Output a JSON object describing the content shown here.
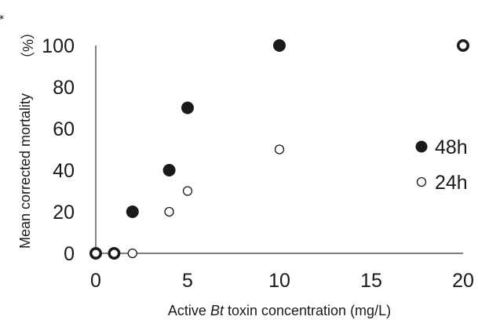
{
  "chart_data": {
    "type": "scatter",
    "xlabel": {
      "prefix": "Active ",
      "italic": "Bt",
      "suffix": " toxin concentration (mg/L)"
    },
    "ylabel": "Mean corrected mortality",
    "ylabel_unit": "（%）",
    "ylabel_mark": "*",
    "xlim": [
      0,
      20
    ],
    "ylim": [
      0,
      100
    ],
    "xticks": [
      "0",
      "5",
      "10",
      "15",
      "20"
    ],
    "yticks": [
      "0",
      "20",
      "40",
      "60",
      "80",
      "100"
    ],
    "grid": false,
    "legend_position": "right",
    "series": [
      {
        "name": "48h",
        "marker": "filled-circle",
        "color": "#1a1a1a",
        "points": [
          {
            "x": 0,
            "y": 0
          },
          {
            "x": 1,
            "y": 0
          },
          {
            "x": 2,
            "y": 20
          },
          {
            "x": 4,
            "y": 40
          },
          {
            "x": 5,
            "y": 70
          },
          {
            "x": 10,
            "y": 100
          },
          {
            "x": 20,
            "y": 100
          }
        ]
      },
      {
        "name": "24h",
        "marker": "open-circle",
        "color": "#1a1a1a",
        "points": [
          {
            "x": 0,
            "y": 0
          },
          {
            "x": 1,
            "y": 0
          },
          {
            "x": 2,
            "y": 0
          },
          {
            "x": 4,
            "y": 20
          },
          {
            "x": 5,
            "y": 30
          },
          {
            "x": 10,
            "y": 50
          },
          {
            "x": 20,
            "y": 100
          }
        ]
      }
    ]
  }
}
